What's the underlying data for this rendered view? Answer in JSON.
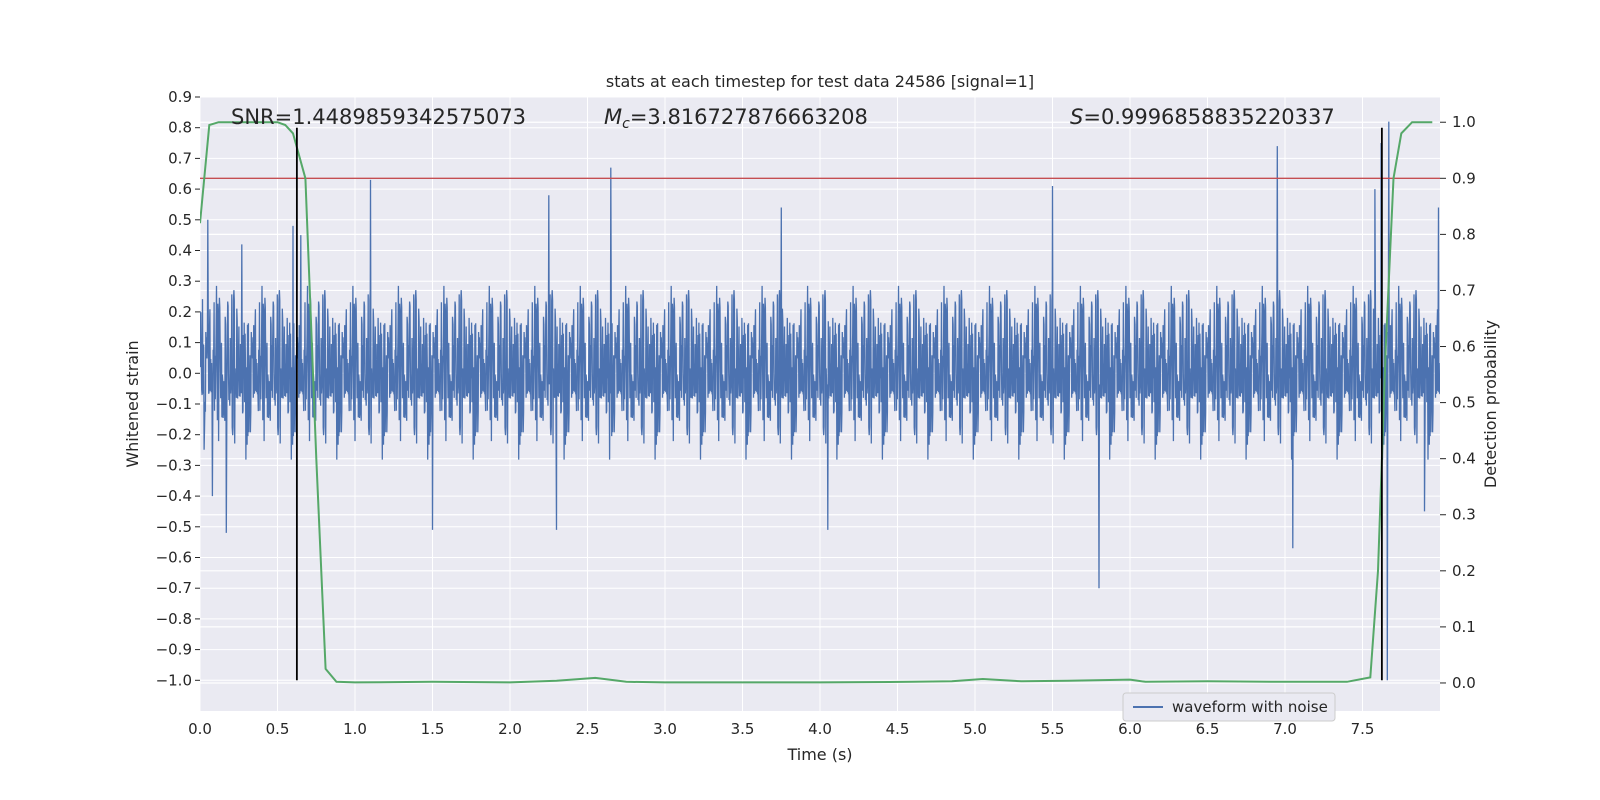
{
  "chart_data": {
    "type": "line",
    "title": "stats at each timestep for test data 24586 [signal=1]",
    "xlabel": "Time (s)",
    "ylabel": "Whitened strain",
    "y2label": "Detection probability",
    "xlim": [
      0.0,
      8.0
    ],
    "ylim": [
      -1.1,
      0.9
    ],
    "y2lim": [
      -0.05,
      1.045
    ],
    "grid": true,
    "x_ticks": [
      "0.0",
      "0.5",
      "1.0",
      "1.5",
      "2.0",
      "2.5",
      "3.0",
      "3.5",
      "4.0",
      "4.5",
      "5.0",
      "5.5",
      "6.0",
      "6.5",
      "7.0",
      "7.5"
    ],
    "x_tick_values": [
      0.0,
      0.5,
      1.0,
      1.5,
      2.0,
      2.5,
      3.0,
      3.5,
      4.0,
      4.5,
      5.0,
      5.5,
      6.0,
      6.5,
      7.0,
      7.5
    ],
    "y_ticks": [
      "0.9",
      "0.8",
      "0.7",
      "0.6",
      "0.5",
      "0.4",
      "0.3",
      "0.2",
      "0.1",
      "0.0",
      "−0.1",
      "−0.2",
      "−0.3",
      "−0.4",
      "−0.5",
      "−0.6",
      "−0.7",
      "−0.8",
      "−0.9",
      "−1.0"
    ],
    "y_tick_values": [
      0.9,
      0.8,
      0.7,
      0.6,
      0.5,
      0.4,
      0.3,
      0.2,
      0.1,
      0.0,
      -0.1,
      -0.2,
      -0.3,
      -0.4,
      -0.5,
      -0.6,
      -0.7,
      -0.8,
      -0.9,
      -1.0
    ],
    "y2_ticks": [
      "1.0",
      "0.9",
      "0.8",
      "0.7",
      "0.6",
      "0.5",
      "0.4",
      "0.3",
      "0.2",
      "0.1",
      "0.0"
    ],
    "y2_tick_values": [
      1.0,
      0.9,
      0.8,
      0.7,
      0.6,
      0.5,
      0.4,
      0.3,
      0.2,
      0.1,
      0.0
    ],
    "annotations": {
      "snr": "SNR=1.4489859342575073",
      "mc_symbol": "M",
      "mc_sub": "c",
      "mc_value": "=3.816727876663208",
      "s_symbol": "S",
      "s_value": "=0.9996858835220337"
    },
    "legend": {
      "label": "waveform with noise",
      "placement": "lower-right"
    },
    "threshold": {
      "y2": 0.9,
      "color": "#c44e52"
    },
    "vlines": [
      {
        "x": 0.625,
        "ymin": -1.0,
        "ymax": 0.8
      },
      {
        "x": 7.625,
        "ymin": -1.0,
        "ymax": 0.8
      }
    ],
    "series": [
      {
        "name": "waveform with noise",
        "color": "#4c72b0",
        "kind": "noise",
        "envelope": 0.3,
        "spikes": [
          {
            "x": 0.05,
            "y": 0.5
          },
          {
            "x": 0.08,
            "y": -0.4
          },
          {
            "x": 0.17,
            "y": -0.52
          },
          {
            "x": 0.27,
            "y": 0.42
          },
          {
            "x": 0.6,
            "y": 0.48
          },
          {
            "x": 0.65,
            "y": 0.45
          },
          {
            "x": 1.1,
            "y": 0.63
          },
          {
            "x": 1.5,
            "y": -0.51
          },
          {
            "x": 2.25,
            "y": 0.58
          },
          {
            "x": 2.3,
            "y": -0.51
          },
          {
            "x": 2.65,
            "y": 0.67
          },
          {
            "x": 3.75,
            "y": 0.54
          },
          {
            "x": 4.05,
            "y": -0.51
          },
          {
            "x": 5.5,
            "y": 0.61
          },
          {
            "x": 5.8,
            "y": -0.7
          },
          {
            "x": 6.95,
            "y": 0.74
          },
          {
            "x": 7.05,
            "y": -0.57
          },
          {
            "x": 7.58,
            "y": 0.6
          },
          {
            "x": 7.62,
            "y": 0.75
          },
          {
            "x": 7.66,
            "y": -1.0
          },
          {
            "x": 7.67,
            "y": 0.82
          },
          {
            "x": 7.9,
            "y": -0.45
          },
          {
            "x": 7.99,
            "y": 0.54
          }
        ]
      },
      {
        "name": "",
        "color": "#55a868",
        "axis": "right",
        "x": [
          0.0,
          0.06,
          0.12,
          0.2,
          0.3,
          0.4,
          0.5,
          0.55,
          0.6,
          0.68,
          0.75,
          0.81,
          0.88,
          1.0,
          1.5,
          2.0,
          2.3,
          2.55,
          2.75,
          3.0,
          3.5,
          4.0,
          4.6,
          4.85,
          5.05,
          5.3,
          5.6,
          6.0,
          6.1,
          6.5,
          7.0,
          7.4,
          7.55,
          7.6,
          7.65,
          7.7,
          7.75,
          7.82,
          7.88,
          7.95
        ],
        "y": [
          0.82,
          0.995,
          1.0,
          1.0,
          1.0,
          1.0,
          1.0,
          0.995,
          0.98,
          0.9,
          0.4,
          0.025,
          0.002,
          0.001,
          0.002,
          0.001,
          0.004,
          0.009,
          0.002,
          0.001,
          0.001,
          0.001,
          0.002,
          0.003,
          0.007,
          0.003,
          0.004,
          0.006,
          0.002,
          0.003,
          0.002,
          0.002,
          0.01,
          0.2,
          0.6,
          0.9,
          0.98,
          1.0,
          1.0,
          1.0
        ]
      }
    ]
  }
}
